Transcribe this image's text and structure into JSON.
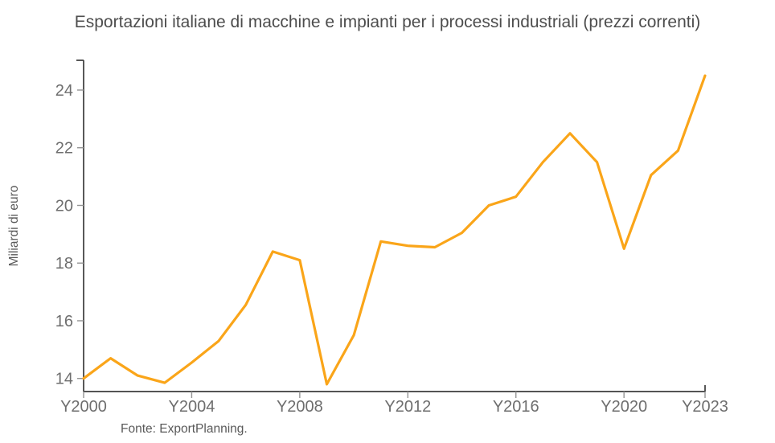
{
  "chart_data": {
    "type": "line",
    "title": "Esportazioni italiane di macchine e impianti per i processi industriali (prezzi correnti)",
    "xlabel": "",
    "ylabel": "Miliardi di euro",
    "source": "Fonte: ExportPlanning.",
    "series_name": "Esportazioni italiane di macchine e impianti",
    "x": [
      2000,
      2001,
      2002,
      2003,
      2004,
      2005,
      2006,
      2007,
      2008,
      2009,
      2010,
      2011,
      2012,
      2013,
      2014,
      2015,
      2016,
      2017,
      2018,
      2019,
      2020,
      2021,
      2022,
      2023
    ],
    "values": [
      14.0,
      14.7,
      14.1,
      13.85,
      14.55,
      15.3,
      16.55,
      18.4,
      18.1,
      13.8,
      15.5,
      18.75,
      18.6,
      18.55,
      19.05,
      20.0,
      20.3,
      21.5,
      22.5,
      21.5,
      18.5,
      21.05,
      21.9,
      24.5
    ],
    "xticks": [
      {
        "year": 2000,
        "label": "Y2000"
      },
      {
        "year": 2004,
        "label": "Y2004"
      },
      {
        "year": 2008,
        "label": "Y2008"
      },
      {
        "year": 2012,
        "label": "Y2012"
      },
      {
        "year": 2016,
        "label": "Y2016"
      },
      {
        "year": 2020,
        "label": "Y2020"
      },
      {
        "year": 2023,
        "label": "Y2023"
      }
    ],
    "yticks": [
      {
        "value": 14,
        "label": "14"
      },
      {
        "value": 16,
        "label": "16"
      },
      {
        "value": 18,
        "label": "18"
      },
      {
        "value": 20,
        "label": "20"
      },
      {
        "value": 22,
        "label": "22"
      },
      {
        "value": 24,
        "label": "24"
      }
    ],
    "xlim": [
      2000,
      2023
    ],
    "ylim": [
      13.55,
      25.05
    ],
    "grid": false,
    "legend": "none",
    "colors": {
      "line": "#FAA519",
      "axis": "#3b3b3b",
      "tick": "#949494",
      "tick_label": "#6e6e6e",
      "title": "#4d4d4d",
      "text": "#595959",
      "background": "#ffffff"
    }
  }
}
